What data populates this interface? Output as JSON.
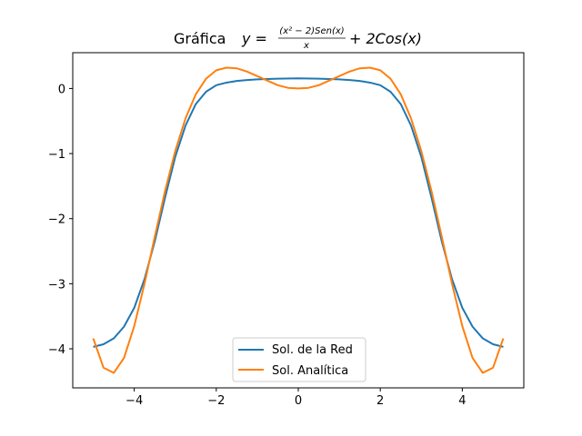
{
  "chart_data": {
    "type": "line",
    "title": {
      "prefix": "Gráfica",
      "lhs": "y =",
      "numerator": "(x² − 2)Sen(x)",
      "denominator": "x",
      "rhs": "+ 2Cos(x)"
    },
    "xlabel": "",
    "ylabel": "",
    "xlim": [
      -5.5,
      5.5
    ],
    "ylim": [
      -4.6,
      0.55
    ],
    "xticks": [
      -4,
      -2,
      0,
      2,
      4
    ],
    "xtick_labels": [
      "−4",
      "−2",
      "0",
      "2",
      "4"
    ],
    "yticks": [
      0,
      -1,
      -2,
      -3,
      -4
    ],
    "ytick_labels": [
      "0",
      "−1",
      "−2",
      "−3",
      "−4"
    ],
    "grid": false,
    "legend": {
      "position": "lower-center"
    },
    "series": [
      {
        "name": "Sol. de la Red",
        "color": "#1f77b4",
        "x": [
          -5.0,
          -4.75,
          -4.5,
          -4.25,
          -4.0,
          -3.75,
          -3.5,
          -3.25,
          -3.0,
          -2.75,
          -2.5,
          -2.25,
          -2.0,
          -1.75,
          -1.5,
          -1.25,
          -1.0,
          -0.5,
          0.0,
          0.5,
          1.0,
          1.25,
          1.5,
          1.75,
          2.0,
          2.25,
          2.5,
          2.75,
          3.0,
          3.25,
          3.5,
          3.75,
          4.0,
          4.25,
          4.5,
          4.75,
          5.0
        ],
        "y": [
          -3.97,
          -3.93,
          -3.84,
          -3.66,
          -3.37,
          -2.93,
          -2.35,
          -1.68,
          -1.05,
          -0.57,
          -0.24,
          -0.05,
          0.05,
          0.09,
          0.115,
          0.13,
          0.14,
          0.15,
          0.155,
          0.15,
          0.14,
          0.13,
          0.115,
          0.09,
          0.05,
          -0.05,
          -0.24,
          -0.57,
          -1.05,
          -1.68,
          -2.35,
          -2.93,
          -3.37,
          -3.66,
          -3.84,
          -3.93,
          -3.97
        ]
      },
      {
        "name": "Sol. Analítica",
        "color": "#ff7f0e",
        "x": [
          -5.0,
          -4.75,
          -4.5,
          -4.25,
          -4.0,
          -3.75,
          -3.5,
          -3.25,
          -3.0,
          -2.75,
          -2.5,
          -2.25,
          -2.0,
          -1.75,
          -1.5,
          -1.25,
          -1.0,
          -0.75,
          -0.5,
          -0.25,
          0.0,
          0.25,
          0.5,
          0.75,
          1.0,
          1.25,
          1.5,
          1.75,
          2.0,
          2.25,
          2.5,
          2.75,
          3.0,
          3.25,
          3.5,
          3.75,
          4.0,
          4.25,
          4.5,
          4.75,
          5.0
        ],
        "y": [
          -3.84,
          -4.29,
          -4.37,
          -4.14,
          -3.65,
          -3.0,
          -2.28,
          -1.58,
          -0.96,
          -0.46,
          -0.09,
          0.15,
          0.28,
          0.32,
          0.31,
          0.26,
          0.19,
          0.12,
          0.05,
          0.01,
          0.0,
          0.01,
          0.05,
          0.12,
          0.19,
          0.26,
          0.31,
          0.32,
          0.28,
          0.15,
          -0.09,
          -0.46,
          -0.96,
          -1.58,
          -2.28,
          -3.0,
          -3.65,
          -4.14,
          -4.37,
          -4.29,
          -3.84
        ]
      }
    ]
  }
}
